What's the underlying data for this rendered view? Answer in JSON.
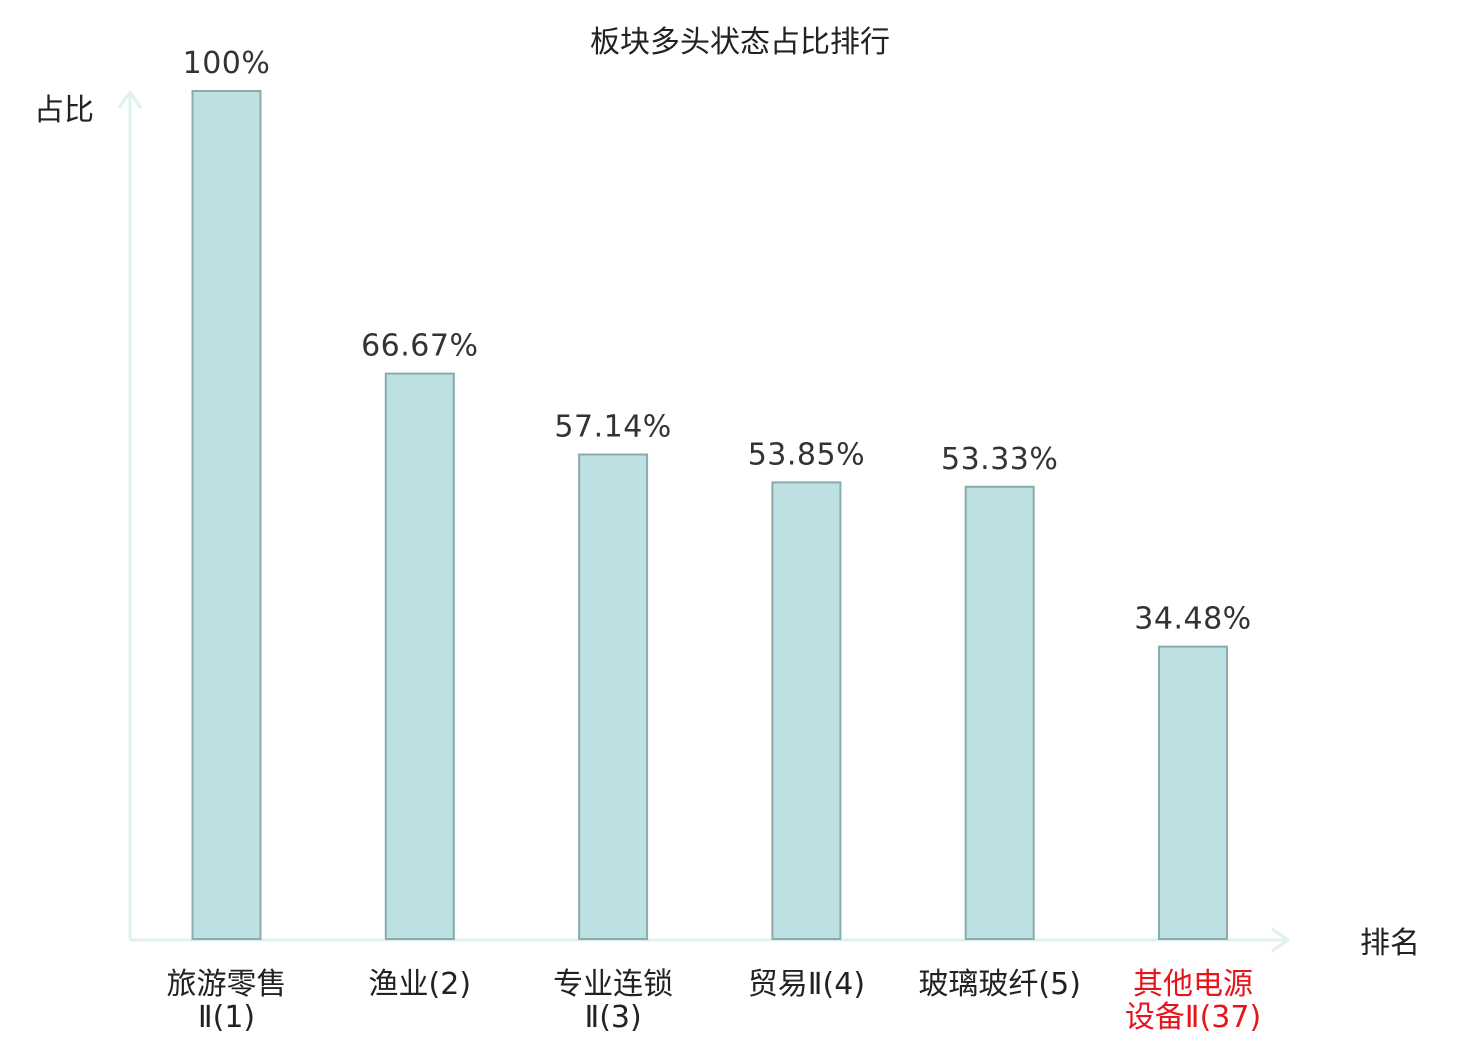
{
  "chart_data": {
    "type": "bar",
    "title": "板块多头状态占比排行",
    "ylabel": "占比",
    "xlabel": "排名",
    "categories": [
      [
        "旅游零售",
        "Ⅱ(1)"
      ],
      [
        "渔业(2)"
      ],
      [
        "专业连锁",
        "Ⅱ(3)"
      ],
      [
        "贸易Ⅱ(4)"
      ],
      [
        "玻璃玻纤(5)"
      ],
      [
        "其他电源",
        "设备Ⅱ(37)"
      ]
    ],
    "values": [
      100,
      66.67,
      57.14,
      53.85,
      53.33,
      34.48
    ],
    "value_labels": [
      "100%",
      "66.67%",
      "57.14%",
      "53.85%",
      "53.33%",
      "34.48%"
    ],
    "highlight_index": 5,
    "ylim": [
      0,
      100
    ],
    "grid": false,
    "colors": {
      "bar_fill": "#bde0e3",
      "bar_stroke": "#8aabae",
      "axis": "#e0f2ef",
      "text": "#222222",
      "highlight_text": "#e8141b"
    }
  }
}
